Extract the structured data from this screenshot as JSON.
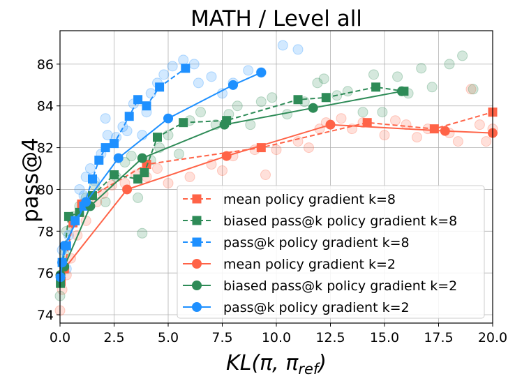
{
  "chart_data": {
    "type": "line",
    "title": "MATH / Level all",
    "xlabel": "KL(π, π",
    "xlabel_sub": "ref",
    "xlabel_close": ")",
    "ylabel": "pass@4",
    "xlim": [
      0,
      20
    ],
    "ylim": [
      73.6,
      87.6
    ],
    "xticks": [
      0,
      2.5,
      5,
      7.5,
      10,
      12.5,
      15,
      17.5,
      20
    ],
    "xtick_labels": [
      "0.0",
      "2.5",
      "5.0",
      "7.5",
      "10.0",
      "12.5",
      "15.0",
      "17.5",
      "20.0"
    ],
    "yticks": [
      74,
      76,
      78,
      80,
      82,
      84,
      86
    ],
    "ytick_labels": [
      "74",
      "76",
      "78",
      "80",
      "82",
      "84",
      "86"
    ],
    "grid": true,
    "legend_position": "lower-right",
    "colors": {
      "mean": "#ff6347",
      "biased": "#2e8b57",
      "passk": "#1e90ff"
    },
    "series": [
      {
        "name": "mean policy gradient k=8",
        "group": "mean",
        "style": "dashed",
        "marker": "square",
        "x": [
          0.05,
          0.2,
          0.6,
          1.0,
          1.5,
          4.0,
          9.3,
          14.2,
          17.3,
          20.0
        ],
        "y": [
          75.6,
          76.2,
          78.4,
          79.3,
          79.7,
          81.2,
          82.0,
          83.2,
          82.9,
          83.7
        ]
      },
      {
        "name": "biased pass@k policy gradient k=8",
        "group": "biased",
        "style": "dashed",
        "marker": "square",
        "x": [
          0.02,
          0.4,
          0.9,
          1.5,
          2.5,
          3.6,
          3.9,
          4.5,
          5.7,
          7.7,
          11.0,
          12.3,
          14.6,
          15.9
        ],
        "y": [
          75.5,
          78.7,
          78.9,
          79.7,
          80.7,
          80.5,
          80.8,
          82.5,
          83.2,
          83.3,
          84.3,
          84.4,
          84.9,
          84.7
        ]
      },
      {
        "name": "pass@k policy gradient k=8",
        "group": "passk",
        "style": "dashed",
        "marker": "square",
        "x": [
          0.1,
          0.3,
          0.7,
          1.1,
          1.5,
          1.8,
          2.1,
          2.5,
          3.2,
          3.6,
          4.0,
          4.6,
          5.8
        ],
        "y": [
          76.5,
          77.3,
          78.5,
          79.2,
          80.5,
          81.4,
          82.0,
          82.2,
          83.5,
          84.3,
          84.0,
          84.9,
          85.8
        ]
      },
      {
        "name": "mean policy gradient k=2",
        "group": "mean",
        "style": "solid",
        "marker": "circle",
        "x": [
          0.02,
          0.2,
          3.1,
          7.7,
          12.5,
          17.8,
          20.0
        ],
        "y": [
          75.9,
          76.2,
          80.0,
          81.6,
          83.1,
          82.8,
          82.7
        ]
      },
      {
        "name": "biased pass@k policy gradient k=2",
        "group": "biased",
        "style": "solid",
        "marker": "circle",
        "x": [
          0.02,
          0.2,
          1.4,
          3.8,
          7.6,
          11.7,
          15.8
        ],
        "y": [
          75.9,
          76.3,
          79.2,
          81.5,
          83.1,
          83.9,
          84.7
        ]
      },
      {
        "name": "pass@k policy gradient k=2",
        "group": "passk",
        "style": "solid",
        "marker": "circle",
        "x": [
          0.02,
          0.1,
          0.2,
          1.2,
          2.7,
          5.0,
          8.0,
          9.3
        ],
        "y": [
          75.8,
          76.5,
          77.3,
          79.4,
          81.5,
          83.4,
          85.0,
          85.6
        ]
      }
    ],
    "scatter_background": [
      {
        "group": "mean",
        "points": [
          [
            0.0,
            74.2
          ],
          [
            0.1,
            75.2
          ],
          [
            0.3,
            75.9
          ],
          [
            0.5,
            76.7
          ],
          [
            0.8,
            77.8
          ],
          [
            1.2,
            78.5
          ],
          [
            1.7,
            79.4
          ],
          [
            2.0,
            79.8
          ],
          [
            2.4,
            80.2
          ],
          [
            3.0,
            80.3
          ],
          [
            3.5,
            80.7
          ],
          [
            4.0,
            80.6
          ],
          [
            4.5,
            81.0
          ],
          [
            5.0,
            80.3
          ],
          [
            6.0,
            80.6
          ],
          [
            7.0,
            81.2
          ],
          [
            7.5,
            80.9
          ],
          [
            8.0,
            81.6
          ],
          [
            9.0,
            81.9
          ],
          [
            9.5,
            80.7
          ],
          [
            10.0,
            81.9
          ],
          [
            11.0,
            82.3
          ],
          [
            11.5,
            82.0
          ],
          [
            12.0,
            82.9
          ],
          [
            12.3,
            83.2
          ],
          [
            13.0,
            83.4
          ],
          [
            13.5,
            82.9
          ],
          [
            14.0,
            83.2
          ],
          [
            15.0,
            82.6
          ],
          [
            15.5,
            83.3
          ],
          [
            16.0,
            83.1
          ],
          [
            16.5,
            82.5
          ],
          [
            17.0,
            82.9
          ],
          [
            18.0,
            82.7
          ],
          [
            18.4,
            82.3
          ],
          [
            19.0,
            84.8
          ],
          [
            19.4,
            83.1
          ],
          [
            19.7,
            82.3
          ],
          [
            20.0,
            82.9
          ]
        ]
      },
      {
        "group": "biased",
        "points": [
          [
            0.0,
            74.9
          ],
          [
            0.2,
            76.9
          ],
          [
            0.3,
            78.0
          ],
          [
            0.6,
            78.7
          ],
          [
            0.9,
            79.2
          ],
          [
            1.2,
            79.6
          ],
          [
            1.6,
            80.2
          ],
          [
            2.1,
            79.4
          ],
          [
            2.6,
            80.6
          ],
          [
            3.0,
            81.3
          ],
          [
            3.3,
            81.6
          ],
          [
            3.6,
            79.6
          ],
          [
            3.8,
            77.9
          ],
          [
            4.2,
            81.4
          ],
          [
            4.6,
            82.0
          ],
          [
            5.0,
            82.6
          ],
          [
            5.5,
            81.7
          ],
          [
            6.0,
            83.3
          ],
          [
            6.5,
            83.7
          ],
          [
            7.2,
            83.1
          ],
          [
            7.8,
            83.6
          ],
          [
            8.2,
            84.0
          ],
          [
            8.8,
            83.1
          ],
          [
            9.3,
            84.2
          ],
          [
            9.8,
            84.4
          ],
          [
            10.5,
            83.6
          ],
          [
            11.3,
            84.2
          ],
          [
            11.9,
            85.1
          ],
          [
            12.2,
            85.3
          ],
          [
            12.8,
            84.5
          ],
          [
            13.3,
            84.7
          ],
          [
            14.0,
            83.7
          ],
          [
            14.5,
            85.5
          ],
          [
            14.9,
            83.7
          ],
          [
            15.6,
            85.4
          ],
          [
            16.1,
            84.6
          ],
          [
            16.7,
            85.8
          ],
          [
            17.2,
            84.9
          ],
          [
            18.0,
            86.0
          ],
          [
            18.6,
            86.4
          ],
          [
            19.1,
            84.8
          ]
        ]
      },
      {
        "group": "passk",
        "points": [
          [
            0.1,
            77.1
          ],
          [
            0.4,
            77.8
          ],
          [
            0.6,
            78.6
          ],
          [
            0.9,
            80.0
          ],
          [
            1.2,
            80.6
          ],
          [
            1.4,
            81.0
          ],
          [
            1.6,
            80.4
          ],
          [
            1.9,
            81.7
          ],
          [
            2.2,
            82.6
          ],
          [
            2.6,
            82.5
          ],
          [
            2.9,
            83.0
          ],
          [
            3.1,
            82.8
          ],
          [
            3.4,
            84.1
          ],
          [
            3.8,
            82.6
          ],
          [
            4.0,
            83.7
          ],
          [
            4.2,
            84.6
          ],
          [
            4.5,
            85.1
          ],
          [
            4.8,
            85.5
          ],
          [
            5.2,
            85.9
          ],
          [
            5.7,
            86.2
          ],
          [
            6.2,
            86.0
          ],
          [
            6.4,
            85.1
          ],
          [
            7.0,
            85.4
          ],
          [
            7.5,
            84.6
          ],
          [
            8.0,
            85.1
          ],
          [
            8.7,
            85.7
          ],
          [
            9.3,
            85.6
          ],
          [
            10.3,
            86.9
          ],
          [
            11.0,
            86.7
          ],
          [
            2.1,
            83.4
          ],
          [
            1.1,
            79.7
          ],
          [
            0.3,
            76.2
          ]
        ]
      }
    ]
  }
}
